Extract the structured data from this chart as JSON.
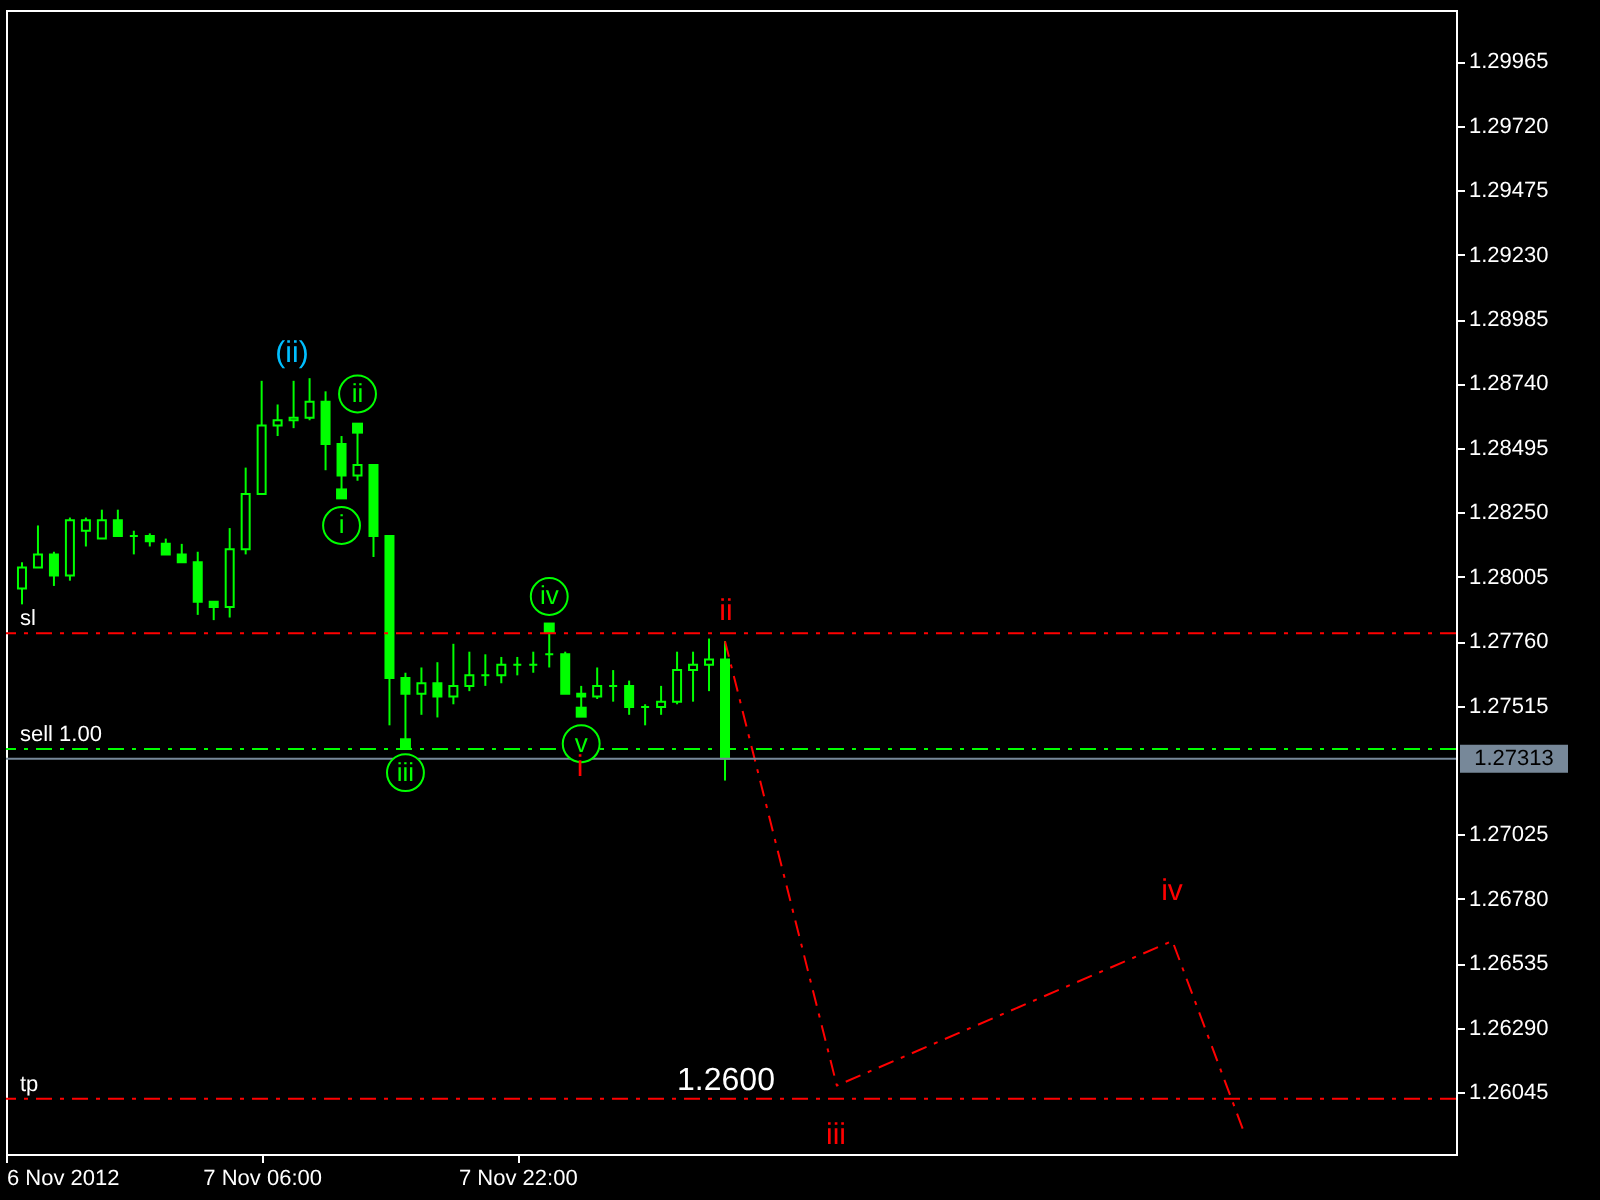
{
  "chart_data": {
    "type": "candlestick",
    "color": "#00ff00",
    "x": [
      "2012-11-06T15:00",
      "2012-11-06T16:00",
      "2012-11-06T17:00",
      "2012-11-06T18:00",
      "2012-11-06T19:00",
      "2012-11-06T20:00",
      "2012-11-06T21:00",
      "2012-11-06T22:00",
      "2012-11-06T23:00",
      "2012-11-07T00:00",
      "2012-11-07T01:00",
      "2012-11-07T02:00",
      "2012-11-07T03:00",
      "2012-11-07T04:00",
      "2012-11-07T05:00",
      "2012-11-07T06:00",
      "2012-11-07T07:00",
      "2012-11-07T08:00",
      "2012-11-07T09:00",
      "2012-11-07T10:00",
      "2012-11-07T11:00",
      "2012-11-07T12:00",
      "2012-11-07T13:00",
      "2012-11-07T14:00",
      "2012-11-07T15:00",
      "2012-11-07T16:00",
      "2012-11-07T17:00",
      "2012-11-07T18:00",
      "2012-11-07T19:00",
      "2012-11-07T20:00",
      "2012-11-07T21:00",
      "2012-11-07T22:00",
      "2012-11-07T23:00",
      "2012-11-08T00:00",
      "2012-11-08T01:00",
      "2012-11-08T02:00",
      "2012-11-08T03:00",
      "2012-11-08T04:00",
      "2012-11-08T05:00",
      "2012-11-08T06:00",
      "2012-11-08T07:00",
      "2012-11-08T08:00",
      "2012-11-08T09:00",
      "2012-11-08T10:00",
      "2012-11-08T11:00"
    ],
    "ohlc": [
      [
        1.2796,
        1.2806,
        1.279,
        1.2804
      ],
      [
        1.2804,
        1.282,
        1.2804,
        1.2809
      ],
      [
        1.2809,
        1.281,
        1.2797,
        1.2801
      ],
      [
        1.2801,
        1.2823,
        1.2799,
        1.2822
      ],
      [
        1.2818,
        1.2823,
        1.2812,
        1.2822
      ],
      [
        1.2815,
        1.2826,
        1.2815,
        1.2822
      ],
      [
        1.2822,
        1.2826,
        1.2816,
        1.2816
      ],
      [
        1.2816,
        1.2818,
        1.2809,
        1.2816
      ],
      [
        1.2816,
        1.2817,
        1.2812,
        1.2814
      ],
      [
        1.2813,
        1.2815,
        1.2809,
        1.2809
      ],
      [
        1.2809,
        1.2813,
        1.2806,
        1.2806
      ],
      [
        1.2806,
        1.281,
        1.2786,
        1.2791
      ],
      [
        1.2791,
        1.2791,
        1.2784,
        1.2789
      ],
      [
        1.2789,
        1.2819,
        1.2785,
        1.2811
      ],
      [
        1.2811,
        1.2842,
        1.2809,
        1.2832
      ],
      [
        1.2832,
        1.2875,
        1.2832,
        1.2858
      ],
      [
        1.2858,
        1.2866,
        1.2854,
        1.286
      ],
      [
        1.286,
        1.2875,
        1.2857,
        1.2861
      ],
      [
        1.2861,
        1.2876,
        1.286,
        1.2867
      ],
      [
        1.2867,
        1.2871,
        1.2841,
        1.2851
      ],
      [
        1.2851,
        1.2854,
        1.2831,
        1.2839
      ],
      [
        1.2839,
        1.2857,
        1.2837,
        1.2843
      ],
      [
        1.2843,
        1.2843,
        1.2808,
        1.2816
      ],
      [
        1.2816,
        1.2816,
        1.2744,
        1.2762
      ],
      [
        1.2762,
        1.2764,
        1.2737,
        1.2756
      ],
      [
        1.2756,
        1.2766,
        1.2748,
        1.276
      ],
      [
        1.276,
        1.2768,
        1.2747,
        1.2755
      ],
      [
        1.2755,
        1.2775,
        1.2752,
        1.2759
      ],
      [
        1.2759,
        1.2772,
        1.2757,
        1.2763
      ],
      [
        1.2763,
        1.2771,
        1.2759,
        1.2763
      ],
      [
        1.2763,
        1.277,
        1.276,
        1.2767
      ],
      [
        1.2767,
        1.277,
        1.2763,
        1.2767
      ],
      [
        1.2767,
        1.2772,
        1.2764,
        1.2767
      ],
      [
        1.2771,
        1.2781,
        1.2766,
        1.2771
      ],
      [
        1.2771,
        1.2772,
        1.2756,
        1.2756
      ],
      [
        1.2756,
        1.2759,
        1.2748,
        1.2755
      ],
      [
        1.2755,
        1.2766,
        1.2754,
        1.2759
      ],
      [
        1.2759,
        1.2765,
        1.2753,
        1.2759
      ],
      [
        1.2759,
        1.2761,
        1.2748,
        1.2751
      ],
      [
        1.2751,
        1.2752,
        1.2744,
        1.2751
      ],
      [
        1.2751,
        1.2759,
        1.2748,
        1.2753
      ],
      [
        1.2753,
        1.2772,
        1.2752,
        1.2765
      ],
      [
        1.2765,
        1.2772,
        1.2753,
        1.2767
      ],
      [
        1.2767,
        1.2777,
        1.2757,
        1.2769
      ],
      [
        1.2769,
        1.2776,
        1.2723,
        1.27313
      ]
    ],
    "series": [
      {
        "type": "scatter",
        "marker": "square",
        "color": "#00ff00",
        "x": [
          "2012-11-07T11:00",
          "2012-11-07T12:00",
          "2012-11-07T15:00",
          "2012-11-08T00:00",
          "2012-11-08T02:00"
        ],
        "values": [
          1.2832,
          1.2857,
          1.2737,
          1.2781,
          1.2749
        ]
      },
      {
        "type": "line",
        "line_style": "dashed",
        "color": "#ff0000",
        "x": [
          "2012-11-08T11:00",
          "2012-11-08T18:00",
          "2012-11-09T15:00",
          "2012-11-09T19:30"
        ],
        "values": [
          1.2776,
          1.2607,
          1.2662,
          1.2589
        ]
      }
    ],
    "xlim": [
      "2012-11-06T14:00",
      "2012-11-10T08:45"
    ],
    "xticks": [
      {
        "value": "2012-11-06T14:00",
        "label": "6 Nov 2012"
      },
      {
        "value": "2012-11-07T06:00",
        "label": "7 Nov 06:00"
      },
      {
        "value": "2012-11-07T22:00",
        "label": "7 Nov 22:00"
      }
    ],
    "ylim": [
      1.2581,
      1.3016
    ],
    "yticks": [
      1.26045,
      {
        "value": 1.2629,
        "label": "1.26290"
      },
      1.26535,
      {
        "value": 1.2678,
        "label": "1.26780"
      },
      1.27025,
      1.27515,
      {
        "value": 1.2776,
        "label": "1.27760"
      },
      1.28005,
      {
        "value": 1.2825,
        "label": "1.28250"
      },
      1.28495,
      {
        "value": 1.2874,
        "label": "1.28740"
      },
      1.28985,
      {
        "value": 1.2923,
        "label": "1.29230"
      },
      1.29475,
      {
        "value": 1.2972,
        "label": "1.29720"
      },
      1.29965
    ],
    "ref_lines": [
      {
        "axis": "y",
        "value": 1.2779,
        "label": "sl",
        "color": "#ff0000",
        "line_style": "dashed"
      },
      {
        "axis": "y",
        "value": 1.2735,
        "label": "sell 1.00",
        "color": "#00ff00",
        "line_style": "dashed"
      },
      {
        "axis": "y",
        "value": 1.2602,
        "label": "tp",
        "color": "#ff0000",
        "line_style": "dashed"
      },
      {
        "axis": "y",
        "value": 1.27313,
        "label": "1.27313",
        "color": "#778899",
        "line_style": "solid"
      }
    ],
    "annotations": [
      {
        "text": "i",
        "x": "2012-11-07T11:00",
        "y": 1.282
      },
      {
        "text": "ii",
        "x": "2012-11-07T12:00",
        "y": 1.287
      },
      {
        "text": "iii",
        "x": "2012-11-07T15:00",
        "y": 1.2726
      },
      {
        "text": "iv",
        "x": "2012-11-08T00:00",
        "y": 1.2793
      },
      {
        "text": "v",
        "x": "2012-11-08T02:00",
        "y": 1.2737
      },
      "(ii)",
      "i",
      "ii",
      "iii",
      "iv",
      "1.2600"
    ]
  }
}
